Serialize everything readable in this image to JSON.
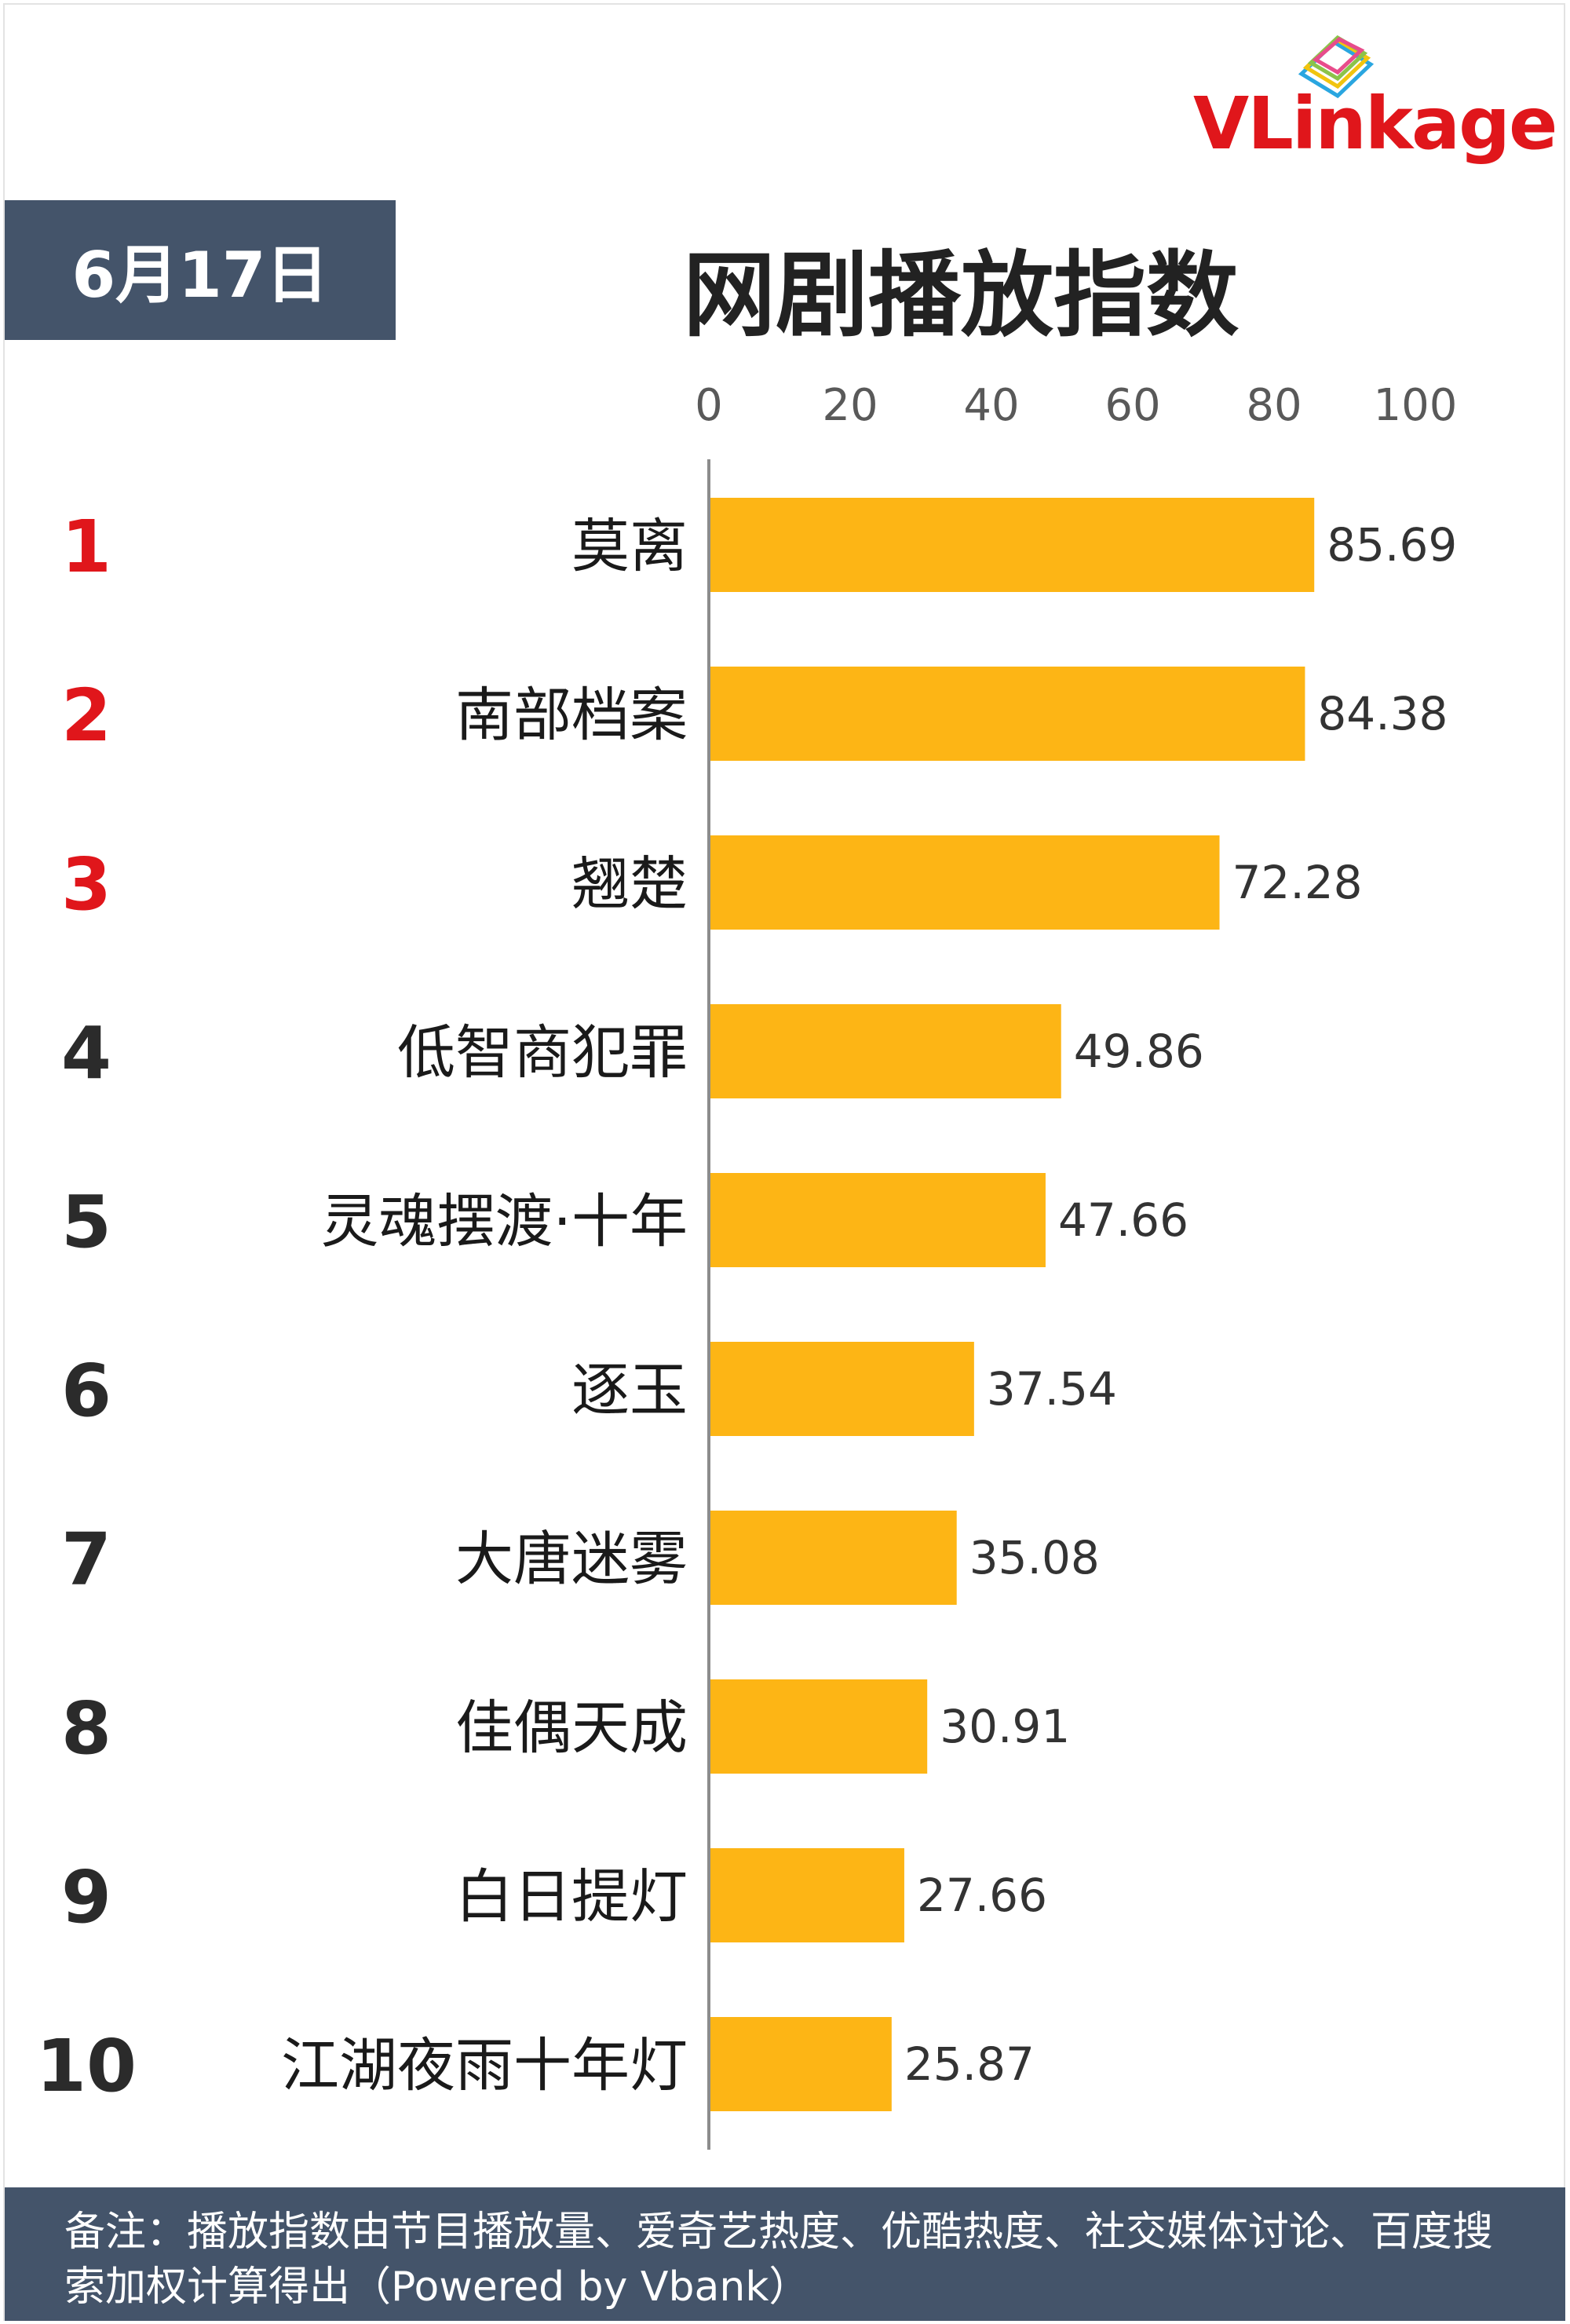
{
  "brand": {
    "name": "VLinkage"
  },
  "header": {
    "date": "6月17日",
    "title": "网剧播放指数"
  },
  "chart_data": {
    "type": "bar",
    "orientation": "horizontal",
    "title": "网剧播放指数",
    "xlim": [
      0,
      100
    ],
    "ticks": [
      0,
      20,
      40,
      60,
      80,
      100
    ],
    "bar_color": "#fdb515",
    "highlight_rank_color": "#e0161b",
    "rank_color": "#2b2b2b",
    "items": [
      {
        "rank": "1",
        "name": "莫离",
        "value": 85.69,
        "label": "85.69"
      },
      {
        "rank": "2",
        "name": "南部档案",
        "value": 84.38,
        "label": "84.38"
      },
      {
        "rank": "3",
        "name": "翘楚",
        "value": 72.28,
        "label": "72.28"
      },
      {
        "rank": "4",
        "name": "低智商犯罪",
        "value": 49.86,
        "label": "49.86"
      },
      {
        "rank": "5",
        "name": "灵魂摆渡·十年",
        "value": 47.66,
        "label": "47.66"
      },
      {
        "rank": "6",
        "name": "逐玉",
        "value": 37.54,
        "label": "37.54"
      },
      {
        "rank": "7",
        "name": "大唐迷雾",
        "value": 35.08,
        "label": "35.08"
      },
      {
        "rank": "8",
        "name": "佳偶天成",
        "value": 30.91,
        "label": "30.91"
      },
      {
        "rank": "9",
        "name": "白日提灯",
        "value": 27.66,
        "label": "27.66"
      },
      {
        "rank": "10",
        "name": "江湖夜雨十年灯",
        "value": 25.87,
        "label": "25.87"
      }
    ]
  },
  "footer": {
    "note": "备注：播放指数由节目播放量、爱奇艺热度、优酷热度、社交媒体讨论、百度搜索加权计算得出（Powered by Vbank）"
  }
}
